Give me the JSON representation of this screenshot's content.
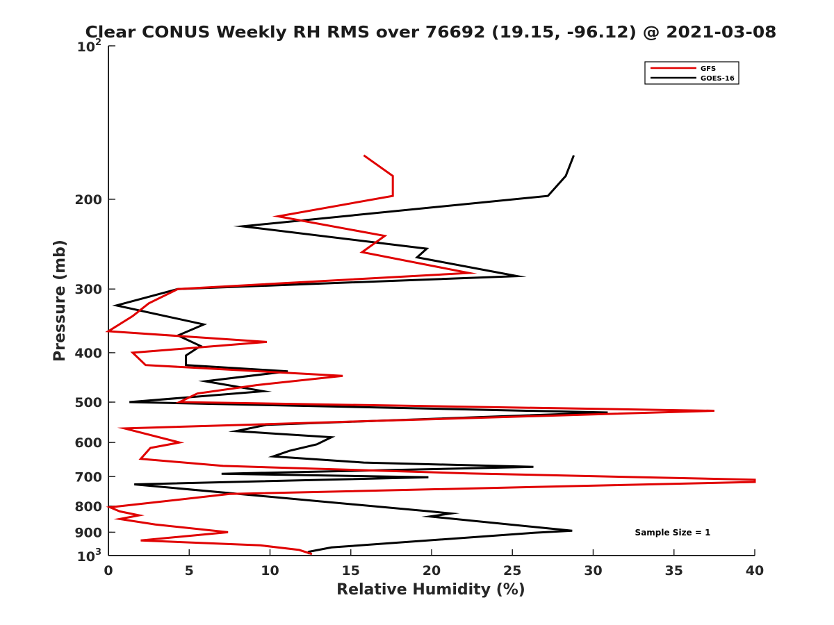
{
  "chart_data": {
    "type": "line",
    "title": "Clear CONUS Weekly RH RMS over 76692 (19.15, -96.12) @ 2021-03-08",
    "xlabel": "Relative Humidity (%)",
    "ylabel": "Pressure (mb)",
    "xlim": [
      0,
      40
    ],
    "ylim": [
      100,
      1000
    ],
    "yscale": "log",
    "y_reversed": true,
    "x_ticks": [
      0,
      5,
      10,
      15,
      20,
      25,
      30,
      35,
      40
    ],
    "y_ticks": [
      {
        "value": 100,
        "base": "10",
        "exp": "2"
      },
      {
        "value": 200,
        "label": "200"
      },
      {
        "value": 300,
        "label": "300"
      },
      {
        "value": 400,
        "label": "400"
      },
      {
        "value": 500,
        "label": "500"
      },
      {
        "value": 600,
        "label": "600"
      },
      {
        "value": 700,
        "label": "700"
      },
      {
        "value": 800,
        "label": "800"
      },
      {
        "value": 900,
        "label": "900"
      },
      {
        "value": 1000,
        "base": "10",
        "exp": "3"
      }
    ],
    "legend_position": "top-right",
    "annotation": "Sample Size = 1",
    "series": [
      {
        "name": "GFS",
        "color": "#e00000",
        "points": [
          [
            15.8,
            164
          ],
          [
            17.6,
            180
          ],
          [
            17.6,
            197
          ],
          [
            10.5,
            216
          ],
          [
            17.1,
            236
          ],
          [
            15.7,
            254
          ],
          [
            22.3,
            279
          ],
          [
            4.3,
            300
          ],
          [
            2.5,
            320
          ],
          [
            1.5,
            339
          ],
          [
            0.0,
            363
          ],
          [
            9.8,
            381
          ],
          [
            1.5,
            400
          ],
          [
            2.3,
            423
          ],
          [
            14.5,
            444
          ],
          [
            9.2,
            463
          ],
          [
            5.5,
            481
          ],
          [
            4.4,
            500
          ],
          [
            37.5,
            520
          ],
          [
            1.0,
            563
          ],
          [
            4.4,
            600
          ],
          [
            2.6,
            615
          ],
          [
            2.0,
            646
          ],
          [
            7.1,
            667
          ],
          [
            22.3,
            690
          ],
          [
            40.0,
            710
          ],
          [
            40.0,
            717
          ],
          [
            7.5,
            757
          ],
          [
            0.1,
            804
          ],
          [
            0.7,
            819
          ],
          [
            1.9,
            834
          ],
          [
            0.7,
            848
          ],
          [
            2.9,
            869
          ],
          [
            7.4,
            900
          ],
          [
            2.0,
            934
          ],
          [
            9.4,
            955
          ],
          [
            11.8,
            975
          ],
          [
            12.6,
            993
          ]
        ]
      },
      {
        "name": "GOES-16",
        "color": "#000000",
        "points": [
          [
            28.8,
            164
          ],
          [
            28.3,
            180
          ],
          [
            27.2,
            197
          ],
          [
            8.3,
            226
          ],
          [
            19.7,
            250
          ],
          [
            19.1,
            260
          ],
          [
            25.3,
            283
          ],
          [
            4.3,
            300
          ],
          [
            0.5,
            323
          ],
          [
            5.9,
            352
          ],
          [
            4.3,
            370
          ],
          [
            5.7,
            388
          ],
          [
            4.8,
            405
          ],
          [
            4.8,
            423
          ],
          [
            11.1,
            435
          ],
          [
            6.0,
            455
          ],
          [
            9.6,
            476
          ],
          [
            1.3,
            500
          ],
          [
            30.9,
            524
          ],
          [
            9.8,
            554
          ],
          [
            7.9,
            570
          ],
          [
            13.8,
            586
          ],
          [
            12.9,
            605
          ],
          [
            11.2,
            623
          ],
          [
            10.2,
            639
          ],
          [
            15.8,
            657
          ],
          [
            26.3,
            670
          ],
          [
            7.0,
            691
          ],
          [
            19.8,
            702
          ],
          [
            1.6,
            725
          ],
          [
            19.9,
            819
          ],
          [
            21.2,
            827
          ],
          [
            19.9,
            838
          ],
          [
            28.7,
            894
          ],
          [
            26.4,
            902
          ],
          [
            13.8,
            964
          ],
          [
            12.4,
            983
          ],
          [
            12.4,
            994
          ]
        ]
      }
    ]
  }
}
